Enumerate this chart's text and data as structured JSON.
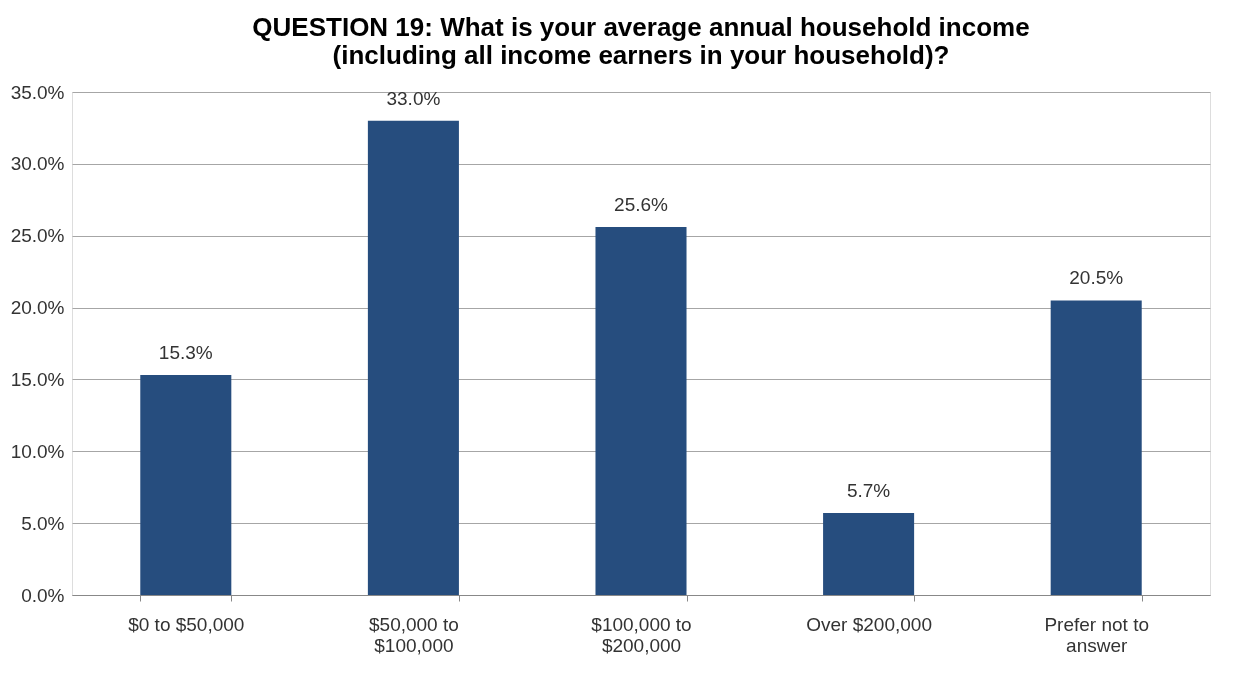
{
  "chart_data": {
    "type": "bar",
    "title": "QUESTION 19: What is your average annual household income (including all income earners in your household)?",
    "categories": [
      "$0 to $50,000",
      "$50,000 to $100,000",
      "$100,000 to $200,000",
      "Over $200,000",
      "Prefer not to answer"
    ],
    "values": [
      15.3,
      33.0,
      25.6,
      5.7,
      20.5
    ],
    "value_labels": [
      "15.3%",
      "33.0%",
      "25.6%",
      "5.7%",
      "20.5%"
    ],
    "color": "#264d7e",
    "ylim": [
      0,
      35
    ],
    "yticks": [
      {
        "value": 0,
        "label": "0.0%"
      },
      {
        "value": 5,
        "label": "5.0%"
      },
      {
        "value": 10,
        "label": "10.0%"
      },
      {
        "value": 15,
        "label": "15.0%"
      },
      {
        "value": 20,
        "label": "20.0%"
      },
      {
        "value": 25,
        "label": "25.0%"
      },
      {
        "value": 30,
        "label": "30.0%"
      },
      {
        "value": 35,
        "label": "35.0%"
      }
    ],
    "grid": "y"
  }
}
